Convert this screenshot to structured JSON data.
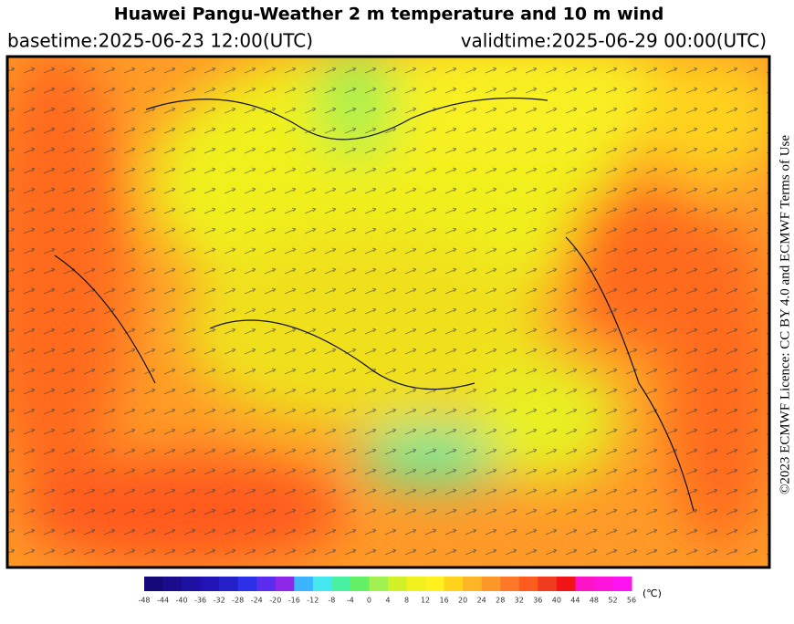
{
  "header": {
    "title": "Huawei Pangu-Weather  2 m temperature and 10 m wind",
    "basetime": "basetime:2025-06-23 12:00(UTC)",
    "validtime": "validtime:2025-06-29 00:00(UTC)"
  },
  "licence": "©2023 ECMWF Licence: CC BY 4.0 and ECMWF Terms of Use",
  "colorbar": {
    "unit": "(℃)",
    "ticks": [
      -48,
      -44,
      -40,
      -36,
      -32,
      -28,
      -24,
      -20,
      -16,
      -12,
      -8,
      -4,
      0,
      4,
      8,
      12,
      16,
      20,
      24,
      28,
      32,
      36,
      40,
      44,
      48,
      52,
      56
    ],
    "colors": [
      "#14087a",
      "#1a0c8c",
      "#1e10a0",
      "#2214b4",
      "#2620c8",
      "#2c30e6",
      "#5a2cf0",
      "#8c28e6",
      "#3cb4ff",
      "#46e6f0",
      "#46f0a0",
      "#64f064",
      "#a0f050",
      "#d2f028",
      "#f0f01e",
      "#fff01e",
      "#ffd21e",
      "#ffb428",
      "#ff9628",
      "#ff7828",
      "#ff5a1e",
      "#f03c1e",
      "#f01414",
      "#ff14c8",
      "#ff14dc",
      "#ff14f0"
    ]
  }
}
